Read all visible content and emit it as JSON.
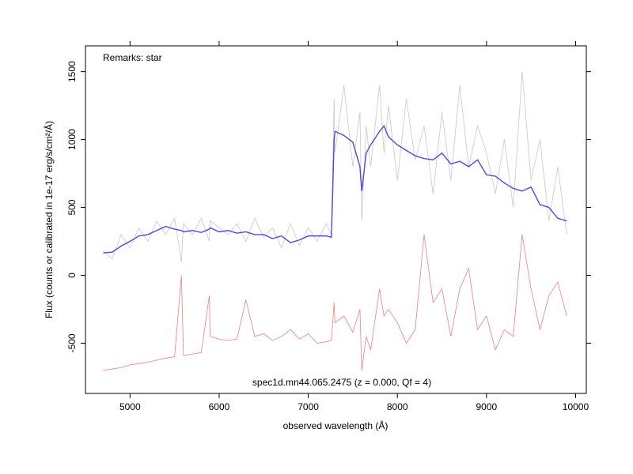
{
  "chart_data": {
    "type": "line",
    "annotations": [
      "Remarks: star",
      "spec1d.mn44.065.2475 (z = 0.000, Qf = 4)"
    ],
    "x_label": "observed wavelength (Å)",
    "y_label": "Flux (counts or calibrated in 1e-17 erg/s/cm²/Å)",
    "x": [
      4700,
      4800,
      4900,
      5000,
      5100,
      5200,
      5300,
      5400,
      5500,
      5577,
      5600,
      5700,
      5800,
      5890,
      5900,
      6000,
      6100,
      6200,
      6300,
      6400,
      6500,
      6600,
      6700,
      6800,
      6900,
      7000,
      7100,
      7200,
      7260,
      7290,
      7300,
      7400,
      7500,
      7580,
      7600,
      7650,
      7700,
      7800,
      7850,
      7900,
      8000,
      8100,
      8200,
      8300,
      8400,
      8500,
      8600,
      8700,
      8800,
      8900,
      9000,
      9100,
      9200,
      9300,
      9400,
      9500,
      9600,
      9700,
      9800,
      9900
    ],
    "series": [
      {
        "color": "#c8c8c8",
        "values": [
          180,
          120,
          300,
          200,
          350,
          250,
          400,
          300,
          420,
          100,
          380,
          300,
          420,
          250,
          400,
          350,
          300,
          380,
          250,
          420,
          280,
          350,
          200,
          380,
          220,
          350,
          250,
          380,
          300,
          1300,
          900,
          1400,
          800,
          1200,
          400,
          1100,
          800,
          1400,
          900,
          1250,
          700,
          1300,
          850,
          1100,
          600,
          1200,
          700,
          1400,
          800,
          1100,
          900,
          600,
          1000,
          500,
          1500,
          700,
          1000,
          400,
          800,
          300
        ]
      },
      {
        "color": "#f08080",
        "values": [
          -700,
          -690,
          -680,
          -660,
          -650,
          -640,
          -625,
          -610,
          -600,
          0,
          -590,
          -580,
          -570,
          -150,
          -450,
          -470,
          -480,
          -470,
          -180,
          -450,
          -430,
          -480,
          -450,
          -400,
          -470,
          -430,
          -500,
          -490,
          -480,
          -200,
          -350,
          -300,
          -420,
          -250,
          -700,
          -450,
          -550,
          -100,
          -300,
          -250,
          -350,
          -500,
          -400,
          300,
          -200,
          -100,
          -450,
          -100,
          50,
          -400,
          -300,
          -550,
          -400,
          -450,
          300,
          -100,
          -400,
          -150,
          -50,
          -300
        ]
      },
      {
        "color": "#4a4ae0",
        "values": [
          165,
          170,
          215,
          250,
          290,
          300,
          330,
          360,
          340,
          330,
          320,
          330,
          315,
          340,
          350,
          320,
          330,
          310,
          320,
          300,
          300,
          270,
          290,
          240,
          260,
          290,
          290,
          290,
          280,
          1000,
          1060,
          1030,
          980,
          800,
          620,
          900,
          960,
          1060,
          1100,
          1020,
          960,
          920,
          880,
          860,
          850,
          900,
          820,
          840,
          800,
          850,
          740,
          730,
          680,
          640,
          620,
          650,
          520,
          500,
          420,
          400
        ]
      }
    ],
    "xlim": [
      4500,
      10120
    ],
    "xticks": [
      5000,
      6000,
      7000,
      8000,
      9000,
      10000
    ],
    "ylim": [
      -870,
      1690
    ],
    "yticks": [
      -500,
      0,
      500,
      1000,
      1500
    ]
  }
}
